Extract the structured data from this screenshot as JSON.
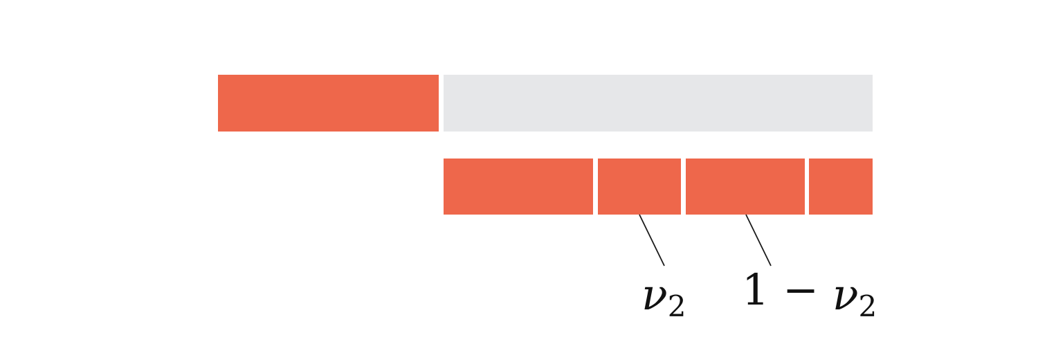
{
  "colors": {
    "accent": "#ee674b",
    "track": "#e6e7e9",
    "background": "#ffffff",
    "line": "#1a1a1a",
    "text": "#111111"
  },
  "labels": {
    "nu2": {
      "symbol": "ν",
      "sub": "2"
    },
    "one_minus_nu2": {
      "lead": "1 − ",
      "symbol": "ν",
      "sub": "2"
    }
  }
}
